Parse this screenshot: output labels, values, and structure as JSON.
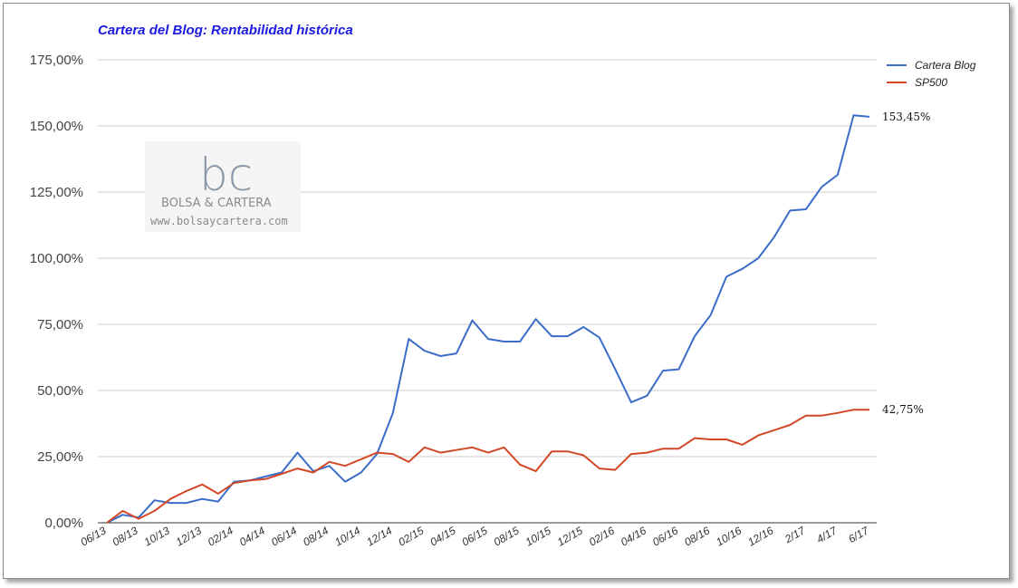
{
  "chart_data": {
    "type": "line",
    "title": "Cartera del Blog: Rentabilidad histórica",
    "y_tick_labels": [
      "0,00%",
      "25,00%",
      "50,00%",
      "75,00%",
      "100,00%",
      "125,00%",
      "150,00%",
      "175,00%"
    ],
    "y_ticks": [
      0,
      25,
      50,
      75,
      100,
      125,
      150,
      175
    ],
    "ylim": [
      0,
      175
    ],
    "grid": true,
    "legend_position": "top-right",
    "x_tick_labels": [
      "06/13",
      "08/13",
      "10/13",
      "12/13",
      "02/14",
      "04/14",
      "06/14",
      "08/14",
      "10/14",
      "12/14",
      "02/15",
      "04/15",
      "06/15",
      "08/15",
      "10/15",
      "12/15",
      "02/16",
      "04/16",
      "06/16",
      "08/16",
      "10/16",
      "12/16",
      "2/17",
      "4/17",
      "6/17"
    ],
    "series": [
      {
        "name": "Cartera Blog",
        "color": "#3a6cc8",
        "end_label": "153,45%",
        "values": [
          0,
          3,
          2,
          8.5,
          7.5,
          7.5,
          9,
          8,
          15.5,
          16,
          17.5,
          19,
          26.5,
          19.5,
          21.5,
          15.5,
          19,
          26,
          41.5,
          69.5,
          65,
          63,
          64,
          76.5,
          69.5,
          68.5,
          68.5,
          77,
          70.5,
          70.5,
          74,
          70,
          58,
          45.5,
          48,
          57.5,
          58,
          70.5,
          78.5,
          93,
          96,
          100,
          108,
          118,
          118.5,
          127,
          131.5,
          154,
          153.45
        ]
      },
      {
        "name": "SP500",
        "color": "#d24726",
        "end_label": "42,75%",
        "values": [
          0,
          4.5,
          1.5,
          4.5,
          9,
          12,
          14.5,
          11,
          15,
          16,
          16.5,
          18.5,
          20.5,
          19,
          23,
          21.5,
          24,
          26.5,
          26,
          23,
          28.5,
          26.5,
          27.5,
          28.5,
          26.5,
          28.5,
          22,
          19.5,
          27,
          27,
          25.5,
          20.5,
          20,
          26,
          26.5,
          28,
          28,
          32,
          31.5,
          31.5,
          29.5,
          33,
          35,
          37,
          40.5,
          40.5,
          41.5,
          42.75,
          42.75
        ]
      }
    ]
  },
  "watermark": {
    "letters": "bc",
    "name": "BOLSA & CARTERA",
    "url": "www.bolsaycartera.com"
  }
}
